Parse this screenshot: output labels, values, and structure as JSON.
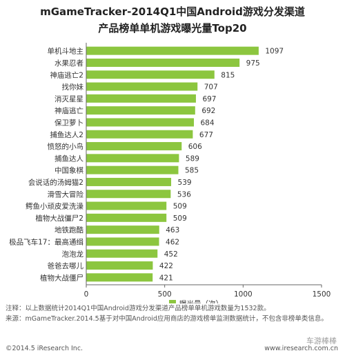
{
  "header": {
    "title_line1": "mGameTracker-2014Q1中国Android游戏分发渠道",
    "title_line2": "产品榜单单机游戏曝光量Top20"
  },
  "chart_data": {
    "type": "bar",
    "orientation": "horizontal",
    "categories": [
      "单机斗地主",
      "水果忍者",
      "神庙逃亡2",
      "找你妹",
      "消灭星星",
      "神庙逃亡",
      "保卫萝卜",
      "捕鱼达人2",
      "愤怒的小鸟",
      "捕鱼达人",
      "中国象棋",
      "会说话的汤姆猫2",
      "滑雪大冒险",
      "鳄鱼小顽皮爱洗澡",
      "植物大战僵尸2",
      "地铁跑酷",
      "极品飞车17：最高通缉",
      "泡泡龙",
      "爸爸去哪儿",
      "植物大战僵尸"
    ],
    "series": [
      {
        "name": "曝光量（次）",
        "values": [
          1097,
          975,
          815,
          707,
          697,
          692,
          684,
          677,
          606,
          589,
          585,
          539,
          536,
          509,
          509,
          463,
          462,
          452,
          422,
          421
        ]
      }
    ],
    "xlim": [
      0,
      1500
    ],
    "xticks": [
      "0",
      "500",
      "1000",
      "1500"
    ],
    "legend_position": "bottom",
    "grid": false,
    "bar_color": "#8cc63f"
  },
  "notes": {
    "line1": "注释：以上数据统计2014Q1中国Android游戏分发渠道产品榜单单机游戏数量为1532款。",
    "line2": "来源：mGameTracker.2014.5基于对中国Android应用商店的游戏榜单监测数据统计，不包含非榜单类信息。"
  },
  "footer": {
    "copyright": "©2014.5 iResearch Inc.",
    "url": "www.iresearch.com.cn",
    "watermark": "车游棒棒"
  }
}
